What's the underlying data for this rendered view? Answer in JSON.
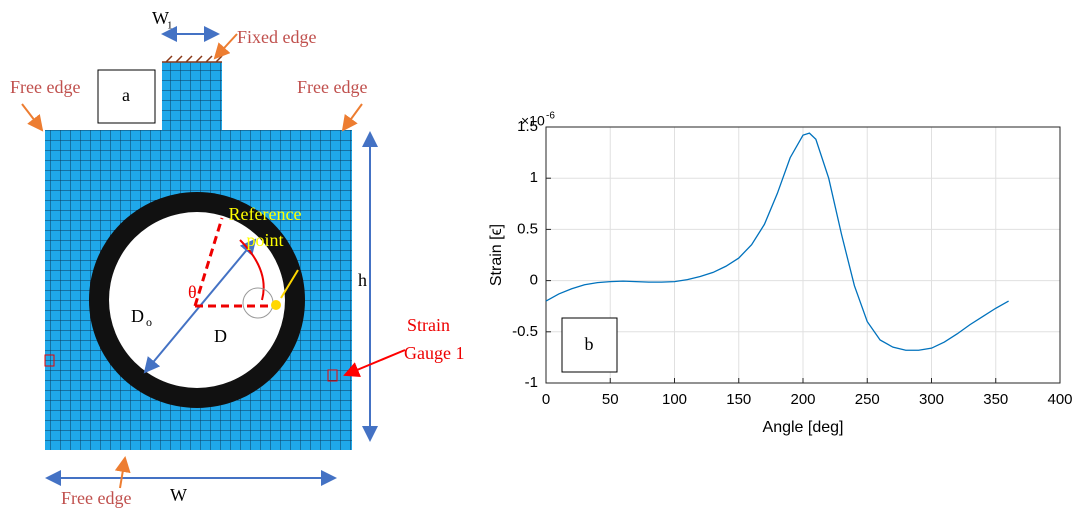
{
  "diagram": {
    "w1": {
      "base": "W",
      "sub": "1"
    },
    "fixed_edge": "Fixed edge",
    "free_edges": [
      "Free edge",
      "Free edge",
      "Free edge"
    ],
    "panel_label": "a",
    "reference_point": [
      "Reference",
      "point"
    ],
    "theta": "θ",
    "d_outer": {
      "base": "D",
      "sub": "o"
    },
    "d": "D",
    "h": "h",
    "strain_gauge": [
      "Strain",
      "Gauge 1"
    ],
    "w": "W"
  },
  "chart_data": {
    "type": "line",
    "xlabel": "Angle [deg]",
    "ylabel": "Strain [ϵ]",
    "y_exponent": {
      "base": "×10",
      "power": "-6"
    },
    "panel_label": "b",
    "x": [
      0,
      10,
      20,
      30,
      40,
      50,
      60,
      70,
      80,
      90,
      100,
      110,
      120,
      130,
      140,
      150,
      160,
      170,
      180,
      190,
      200,
      205,
      210,
      220,
      230,
      240,
      250,
      260,
      270,
      280,
      290,
      300,
      310,
      320,
      330,
      340,
      350,
      360
    ],
    "values": [
      -0.2,
      -0.13,
      -0.08,
      -0.04,
      -0.02,
      -0.01,
      -0.005,
      -0.01,
      -0.015,
      -0.015,
      -0.01,
      0.01,
      0.04,
      0.08,
      0.14,
      0.22,
      0.35,
      0.55,
      0.85,
      1.2,
      1.42,
      1.44,
      1.38,
      1.0,
      0.45,
      -0.05,
      -0.4,
      -0.58,
      -0.65,
      -0.68,
      -0.68,
      -0.66,
      -0.6,
      -0.52,
      -0.43,
      -0.35,
      -0.27,
      -0.2
    ],
    "color": "#0072bd",
    "xlim": [
      0,
      400
    ],
    "ylim": [
      -1,
      1.5
    ],
    "xticks": [
      0,
      50,
      100,
      150,
      200,
      250,
      300,
      350,
      400
    ],
    "yticks": [
      -1,
      -0.5,
      0,
      0.5,
      1,
      1.5
    ],
    "grid": true
  }
}
